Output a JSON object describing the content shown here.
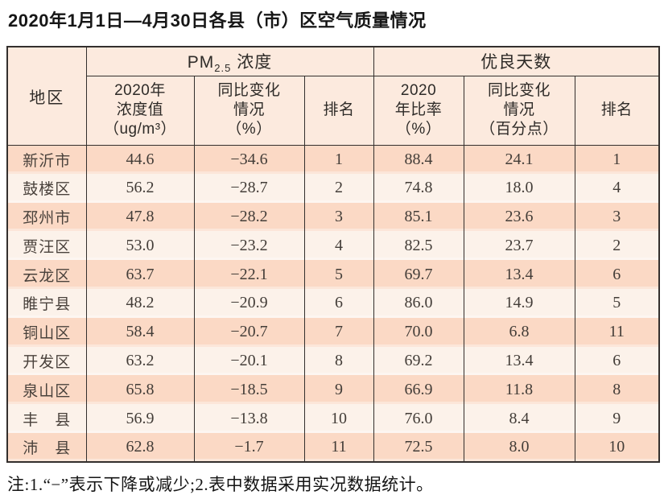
{
  "page": {
    "title": "2020年1月1日—4月30日各县（市）区空气质量情况",
    "footnote": "注:1.“−”表示下降或减少;2.表中数据采用实况数据统计。"
  },
  "colors": {
    "header_bg": "#fceade",
    "row_odd": "#fbd9c5",
    "row_even": "#fcf2ea",
    "grid_border": "#332f2d"
  },
  "table": {
    "region_header": "地区",
    "pm_group": {
      "prefix": "PM",
      "sub": "2.5",
      "suffix": " 浓度"
    },
    "good_group_label": "优良天数",
    "subheaders": {
      "pm_value": [
        "2020年",
        "浓度值",
        "（ug/m³）"
      ],
      "pm_change": [
        "同比变化",
        "情况",
        "（%）"
      ],
      "pm_rank": "排名",
      "good_ratio": [
        "2020",
        "年比率",
        "（%）"
      ],
      "good_change": [
        "同比变化",
        "情况",
        "（百分点）"
      ],
      "good_rank": "排名"
    },
    "rows": [
      {
        "region": "新沂市",
        "pm_value": "44.6",
        "pm_change": "−34.6",
        "pm_rank": "1",
        "good_ratio": "88.4",
        "good_change": "24.1",
        "good_rank": "1"
      },
      {
        "region": "鼓楼区",
        "pm_value": "56.2",
        "pm_change": "−28.7",
        "pm_rank": "2",
        "good_ratio": "74.8",
        "good_change": "18.0",
        "good_rank": "4"
      },
      {
        "region": "邳州市",
        "pm_value": "47.8",
        "pm_change": "−28.2",
        "pm_rank": "3",
        "good_ratio": "85.1",
        "good_change": "23.6",
        "good_rank": "3"
      },
      {
        "region": "贾汪区",
        "pm_value": "53.0",
        "pm_change": "−23.2",
        "pm_rank": "4",
        "good_ratio": "82.5",
        "good_change": "23.7",
        "good_rank": "2"
      },
      {
        "region": "云龙区",
        "pm_value": "63.7",
        "pm_change": "−22.1",
        "pm_rank": "5",
        "good_ratio": "69.7",
        "good_change": "13.4",
        "good_rank": "6"
      },
      {
        "region": "睢宁县",
        "pm_value": "48.2",
        "pm_change": "−20.9",
        "pm_rank": "6",
        "good_ratio": "86.0",
        "good_change": "14.9",
        "good_rank": "5"
      },
      {
        "region": "铜山区",
        "pm_value": "58.4",
        "pm_change": "−20.7",
        "pm_rank": "7",
        "good_ratio": "70.0",
        "good_change": "6.8",
        "good_rank": "11"
      },
      {
        "region": "开发区",
        "pm_value": "63.2",
        "pm_change": "−20.1",
        "pm_rank": "8",
        "good_ratio": "69.2",
        "good_change": "13.4",
        "good_rank": "6"
      },
      {
        "region": "泉山区",
        "pm_value": "65.8",
        "pm_change": "−18.5",
        "pm_rank": "9",
        "good_ratio": "66.9",
        "good_change": "11.8",
        "good_rank": "8"
      },
      {
        "region": "丰　县",
        "pm_value": "56.9",
        "pm_change": "−13.8",
        "pm_rank": "10",
        "good_ratio": "76.0",
        "good_change": "8.4",
        "good_rank": "9"
      },
      {
        "region": "沛　县",
        "pm_value": "62.8",
        "pm_change": "−1.7",
        "pm_rank": "11",
        "good_ratio": "72.5",
        "good_change": "8.0",
        "good_rank": "10"
      }
    ]
  }
}
